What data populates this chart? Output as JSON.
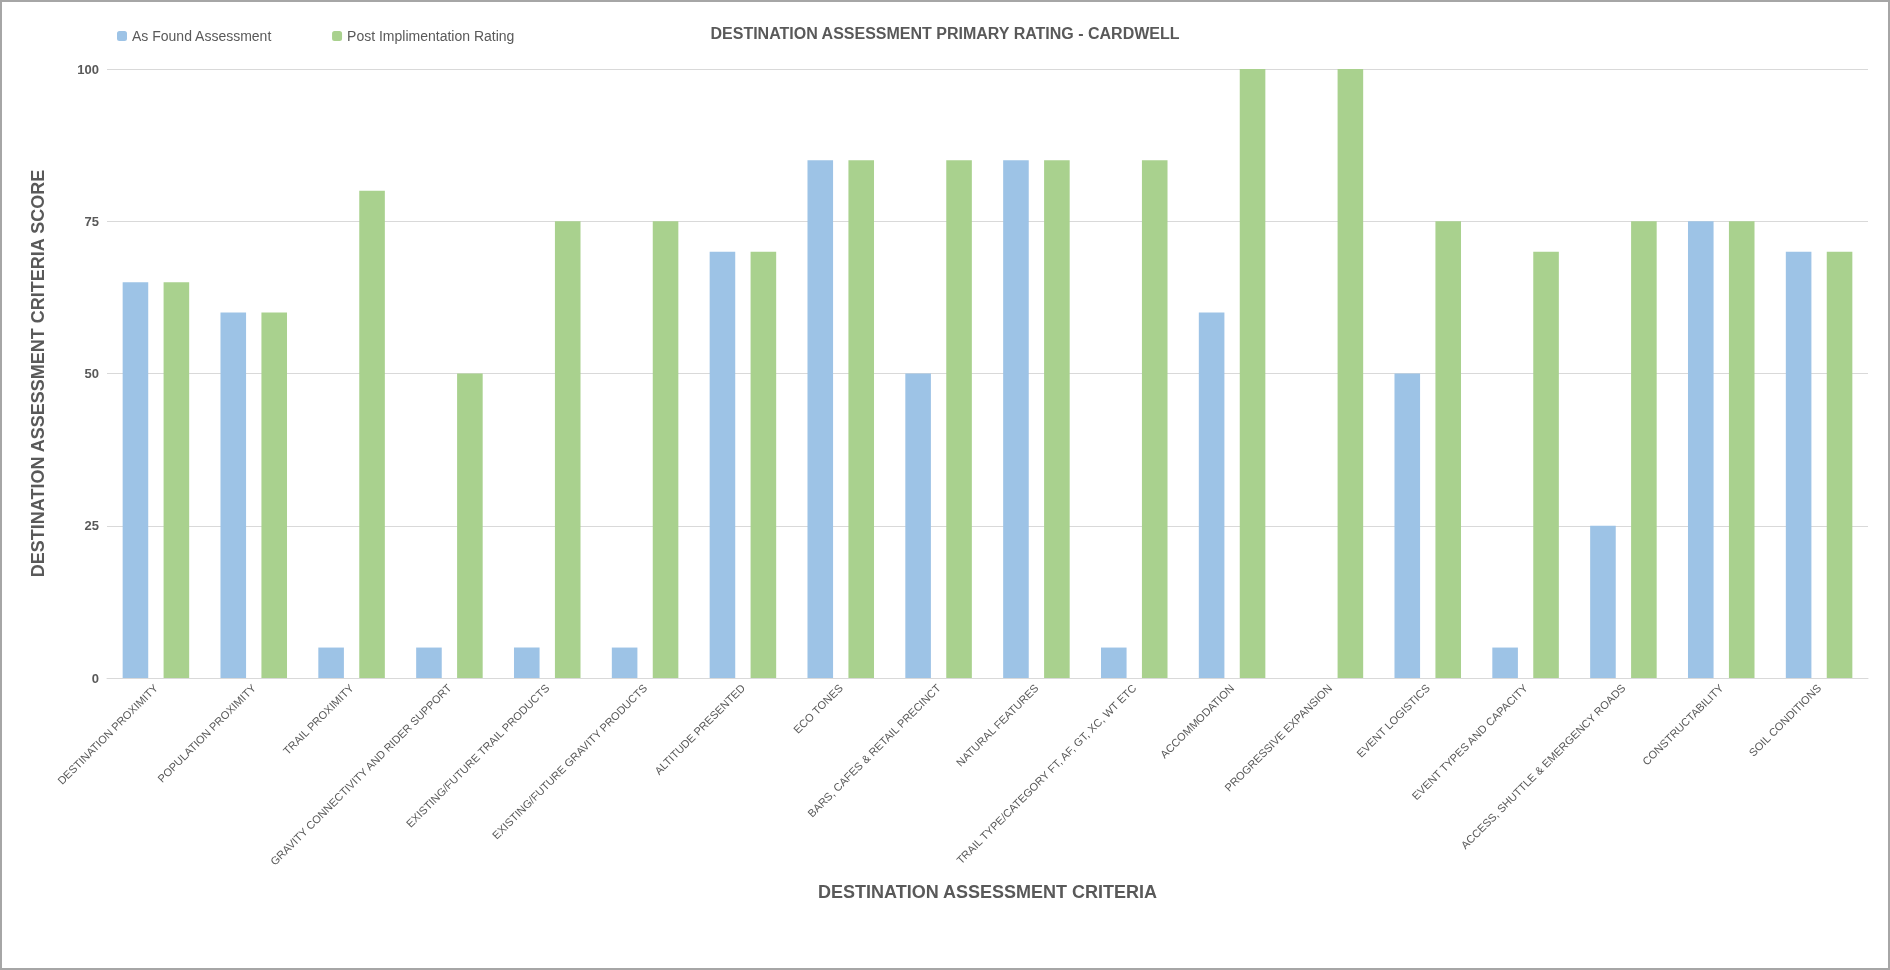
{
  "chart_data": {
    "type": "bar",
    "title": "DESTINATION ASSESSMENT PRIMARY RATING - CARDWELL",
    "xlabel": "DESTINATION ASSESSMENT CRITERIA",
    "ylabel": "DESTINATION ASSESSMENT CRITERIA SCORE",
    "categories": [
      "DESTINATION PROXIMITY",
      "POPULATION PROXIMITY",
      "TRAIL PROXIMITY",
      "GRAVITY CONNECTIVITY AND RIDER SUPPORT",
      "EXISTING/FUTURE TRAIL PRODUCTS",
      "EXISTING/FUTURE GRAVITY PRODUCTS",
      "ALTITUDE PRESENTED",
      "ECO TONES",
      "BARS, CAFES & RETAIL PRECINCT",
      "NATURAL FEATURES",
      "TRAIL TYPE/CATEGORY FT, AF, GT, XC, WT ETC",
      "ACCOMMODATION",
      "PROGRESSIVE EXPANSION",
      "EVENT LOGISTICS",
      "EVENT TYPES AND CAPACITY",
      "ACCESS, SHUTTLE & EMERGENCY ROADS",
      "CONSTRUCTABILITY",
      "SOIL CONDITIONS"
    ],
    "series": [
      {
        "name": "As Found Assessment",
        "color": "#9dc3e6",
        "values": [
          65,
          60,
          5,
          5,
          5,
          5,
          70,
          85,
          50,
          85,
          5,
          60,
          0,
          50,
          5,
          25,
          75,
          70
        ]
      },
      {
        "name": "Post Implimentation Rating",
        "color": "#a9d18e",
        "values": [
          65,
          60,
          80,
          50,
          75,
          75,
          70,
          85,
          85,
          85,
          85,
          100,
          100,
          75,
          70,
          75,
          75,
          70
        ]
      }
    ],
    "ylim": [
      0,
      100
    ],
    "yticks": [
      0,
      25,
      50,
      75,
      100
    ],
    "grid": "y",
    "legend": "top left"
  }
}
